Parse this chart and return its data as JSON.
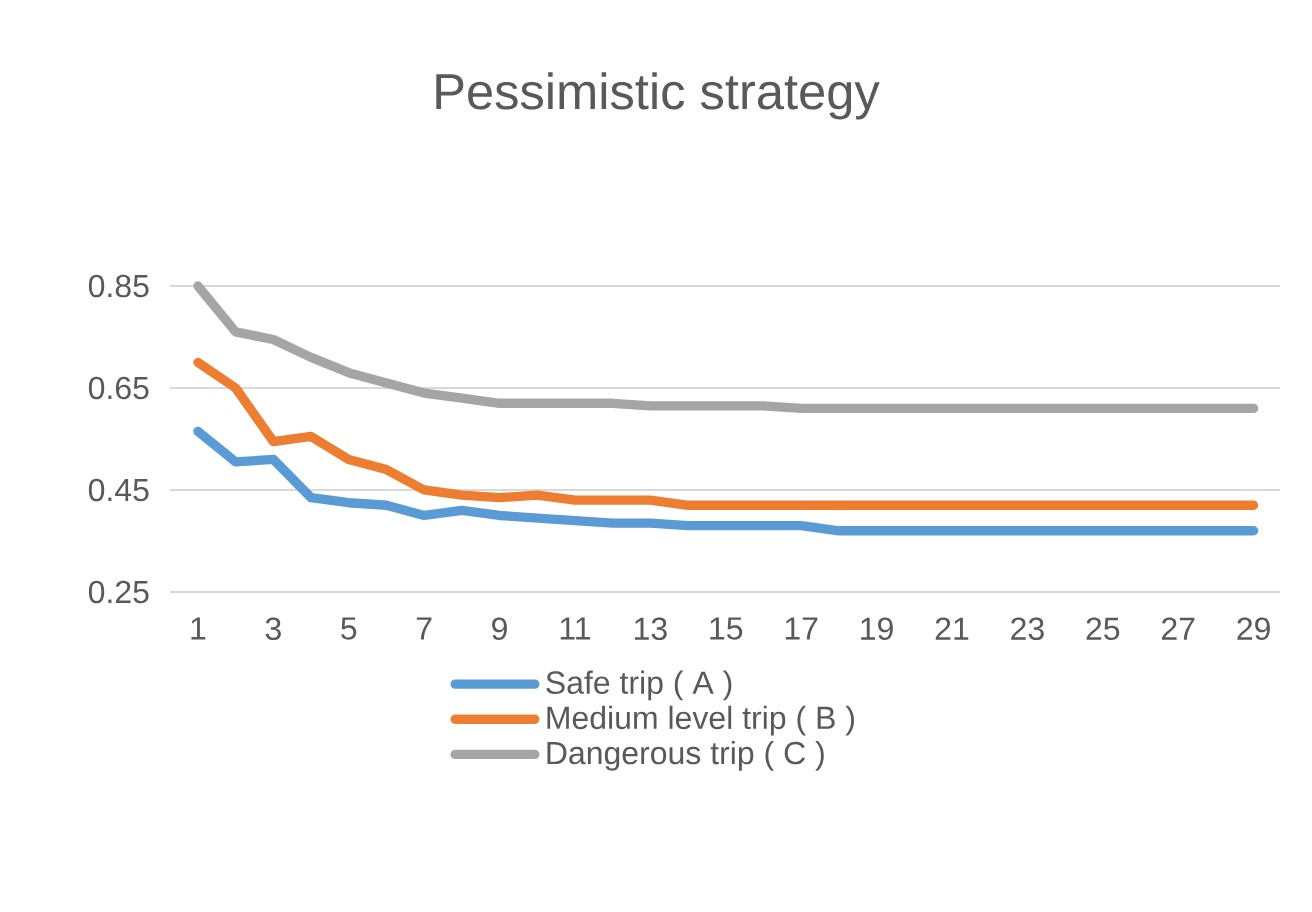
{
  "chart_data": {
    "type": "line",
    "title": "Pessimistic strategy",
    "categories": [
      "1",
      null,
      "3",
      null,
      "5",
      null,
      "7",
      null,
      "9",
      null,
      "11",
      null,
      "13",
      null,
      "15",
      null,
      "17",
      null,
      "19",
      null,
      "21",
      null,
      "23",
      null,
      "25",
      null,
      "27",
      null,
      "29"
    ],
    "series": [
      {
        "name": "Safe trip ( A )",
        "color": "#5b9bd5",
        "values": [
          0.565,
          0.505,
          0.51,
          0.435,
          0.425,
          0.42,
          0.4,
          0.41,
          0.4,
          0.395,
          0.39,
          0.385,
          0.385,
          0.38,
          0.38,
          0.38,
          0.38,
          0.37,
          0.37,
          0.37,
          0.37,
          0.37,
          0.37,
          0.37,
          0.37,
          0.37,
          0.37,
          0.37,
          0.37
        ]
      },
      {
        "name": "Medium level trip ( B )",
        "color": "#ed7d31",
        "values": [
          0.7,
          0.65,
          0.545,
          0.555,
          0.51,
          0.49,
          0.45,
          0.44,
          0.435,
          0.44,
          0.43,
          0.43,
          0.43,
          0.42,
          0.42,
          0.42,
          0.42,
          0.42,
          0.42,
          0.42,
          0.42,
          0.42,
          0.42,
          0.42,
          0.42,
          0.42,
          0.42,
          0.42,
          0.42
        ]
      },
      {
        "name": "Dangerous trip ( C )",
        "color": "#a5a5a5",
        "values": [
          0.85,
          0.76,
          0.745,
          0.71,
          0.68,
          0.66,
          0.64,
          0.63,
          0.62,
          0.62,
          0.62,
          0.62,
          0.615,
          0.615,
          0.615,
          0.615,
          0.61,
          0.61,
          0.61,
          0.61,
          0.61,
          0.61,
          0.61,
          0.61,
          0.61,
          0.61,
          0.61,
          0.61,
          0.61
        ]
      }
    ],
    "ylim": [
      0.25,
      0.85
    ],
    "yticks": [
      0.25,
      0.45,
      0.65,
      0.85
    ],
    "grid": "y",
    "legend": "bottom",
    "marker": "none",
    "line_style": "solid"
  }
}
